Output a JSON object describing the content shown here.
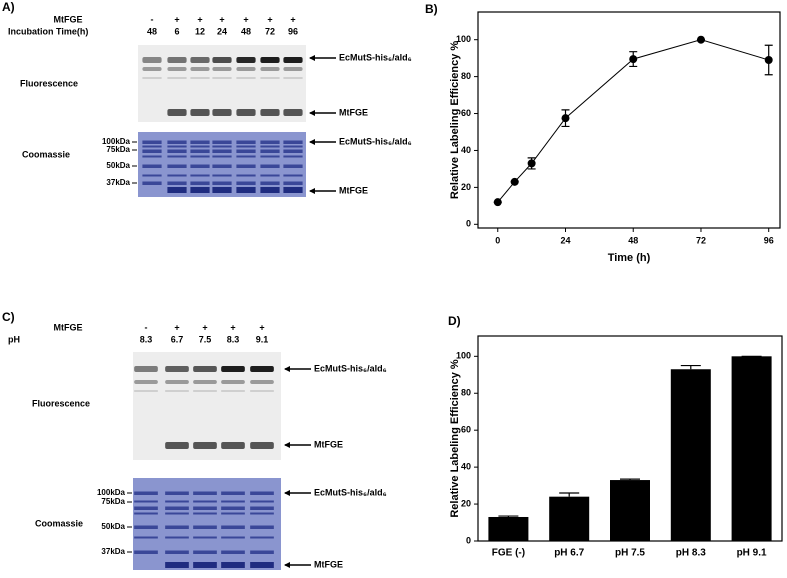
{
  "gels": [
    {
      "panel": "A)",
      "rows": [
        {
          "label": "MtFGE",
          "lanes": [
            "-",
            "+",
            "+",
            "+",
            "+",
            "+",
            "+"
          ]
        },
        {
          "label": "Incubation Time(h)",
          "lanes": [
            "48",
            "6",
            "12",
            "24",
            "48",
            "72",
            "96"
          ]
        }
      ],
      "fluorescence": {
        "label": "Fluorescence",
        "bands": [
          "EcMutS-his₆/ald₆",
          "MtFGE"
        ]
      },
      "coomassie": {
        "label": "Coomassie",
        "markers": [
          "100kDa",
          "75kDa",
          "50kDa",
          "37kDa"
        ],
        "bands": [
          "EcMutS-his₆/ald₆",
          "MtFGE"
        ]
      }
    },
    {
      "panel": "C)",
      "rows": [
        {
          "label": "MtFGE",
          "lanes": [
            "-",
            "+",
            "+",
            "+",
            "+"
          ]
        },
        {
          "label": "pH",
          "lanes": [
            "8.3",
            "6.7",
            "7.5",
            "8.3",
            "9.1"
          ]
        }
      ],
      "fluorescence": {
        "label": "Fluorescence",
        "bands": [
          "EcMutS-his₆/ald₆",
          "MtFGE"
        ]
      },
      "coomassie": {
        "label": "Coomassie",
        "markers": [
          "100kDa",
          "75kDa",
          "50kDa",
          "37kDa"
        ],
        "bands": [
          "EcMutS-his₆/ald₆",
          "MtFGE"
        ]
      }
    }
  ],
  "chart_data": [
    {
      "type": "line",
      "panel": "B)",
      "x_label": "Time (h)",
      "y_label": "Relative Labeling Efficiency %",
      "x": [
        0,
        6,
        12,
        24,
        48,
        72,
        96
      ],
      "values": [
        12,
        23,
        33,
        57.5,
        89.5,
        100,
        89
      ],
      "errors": [
        0,
        0,
        3,
        4.5,
        4,
        0,
        8
      ],
      "color": "#000000",
      "xlim": [
        -7,
        100
      ],
      "xticks": [
        0,
        24,
        48,
        72,
        96
      ],
      "ylim": [
        -2,
        115
      ],
      "yticks": [
        0,
        20,
        40,
        60,
        80,
        100
      ]
    },
    {
      "type": "bar",
      "panel": "D)",
      "y_label": "Relative Labeling Efficiency %",
      "categories": [
        "FGE (-)",
        "pH 6.7",
        "pH 7.5",
        "pH 8.3",
        "pH 9.1"
      ],
      "values": [
        13,
        24,
        33,
        93,
        100
      ],
      "errors": [
        0.5,
        2,
        0.5,
        2,
        0
      ],
      "color": "#000000",
      "ylim": [
        0,
        111
      ],
      "yticks": [
        0,
        20,
        40,
        60,
        80,
        100
      ]
    }
  ]
}
